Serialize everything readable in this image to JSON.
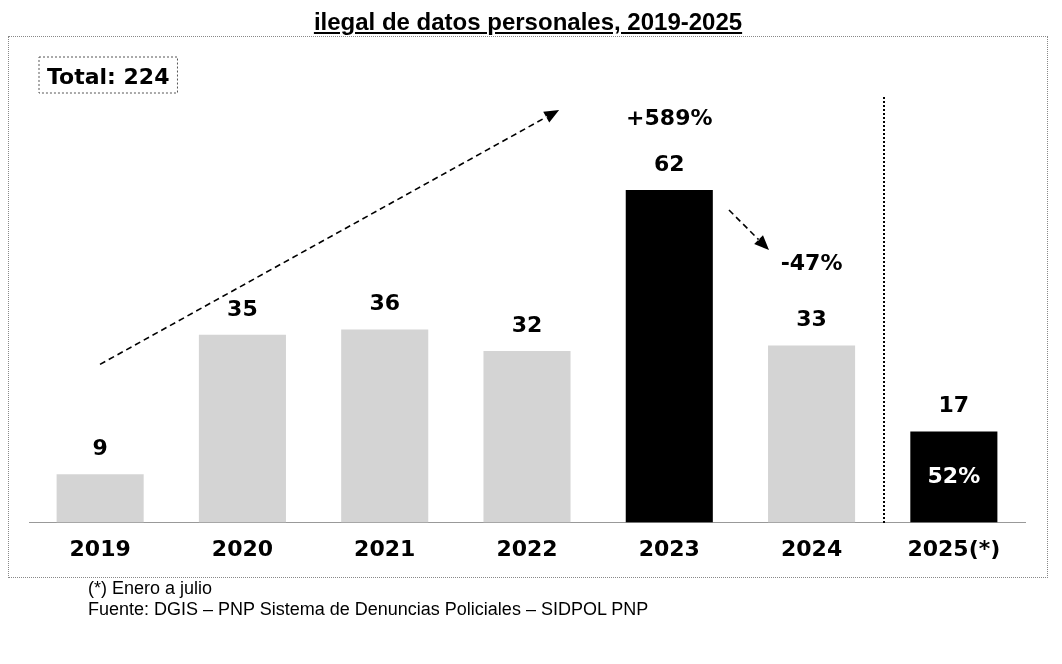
{
  "chart_data": {
    "type": "bar",
    "title": "ilegal de datos personales, 2019-2025",
    "categories": [
      "2019",
      "2020",
      "2021",
      "2022",
      "2023",
      "2024",
      "2025(*)"
    ],
    "values": [
      9,
      35,
      36,
      32,
      62,
      33,
      17
    ],
    "colors": [
      "#d4d4d4",
      "#d4d4d4",
      "#d4d4d4",
      "#d4d4d4",
      "#000000",
      "#d4d4d4",
      "#000000"
    ],
    "data_labels": true,
    "grid": false,
    "legend": false,
    "tick_labels": "x",
    "annotations": [
      "Total: 224",
      "+589%",
      "-47%",
      "52%",
      "(*) Enero a julio",
      "Fuente: DGIS – PNP Sistema de Denuncias Policiales – SIDPOL PNP"
    ]
  }
}
